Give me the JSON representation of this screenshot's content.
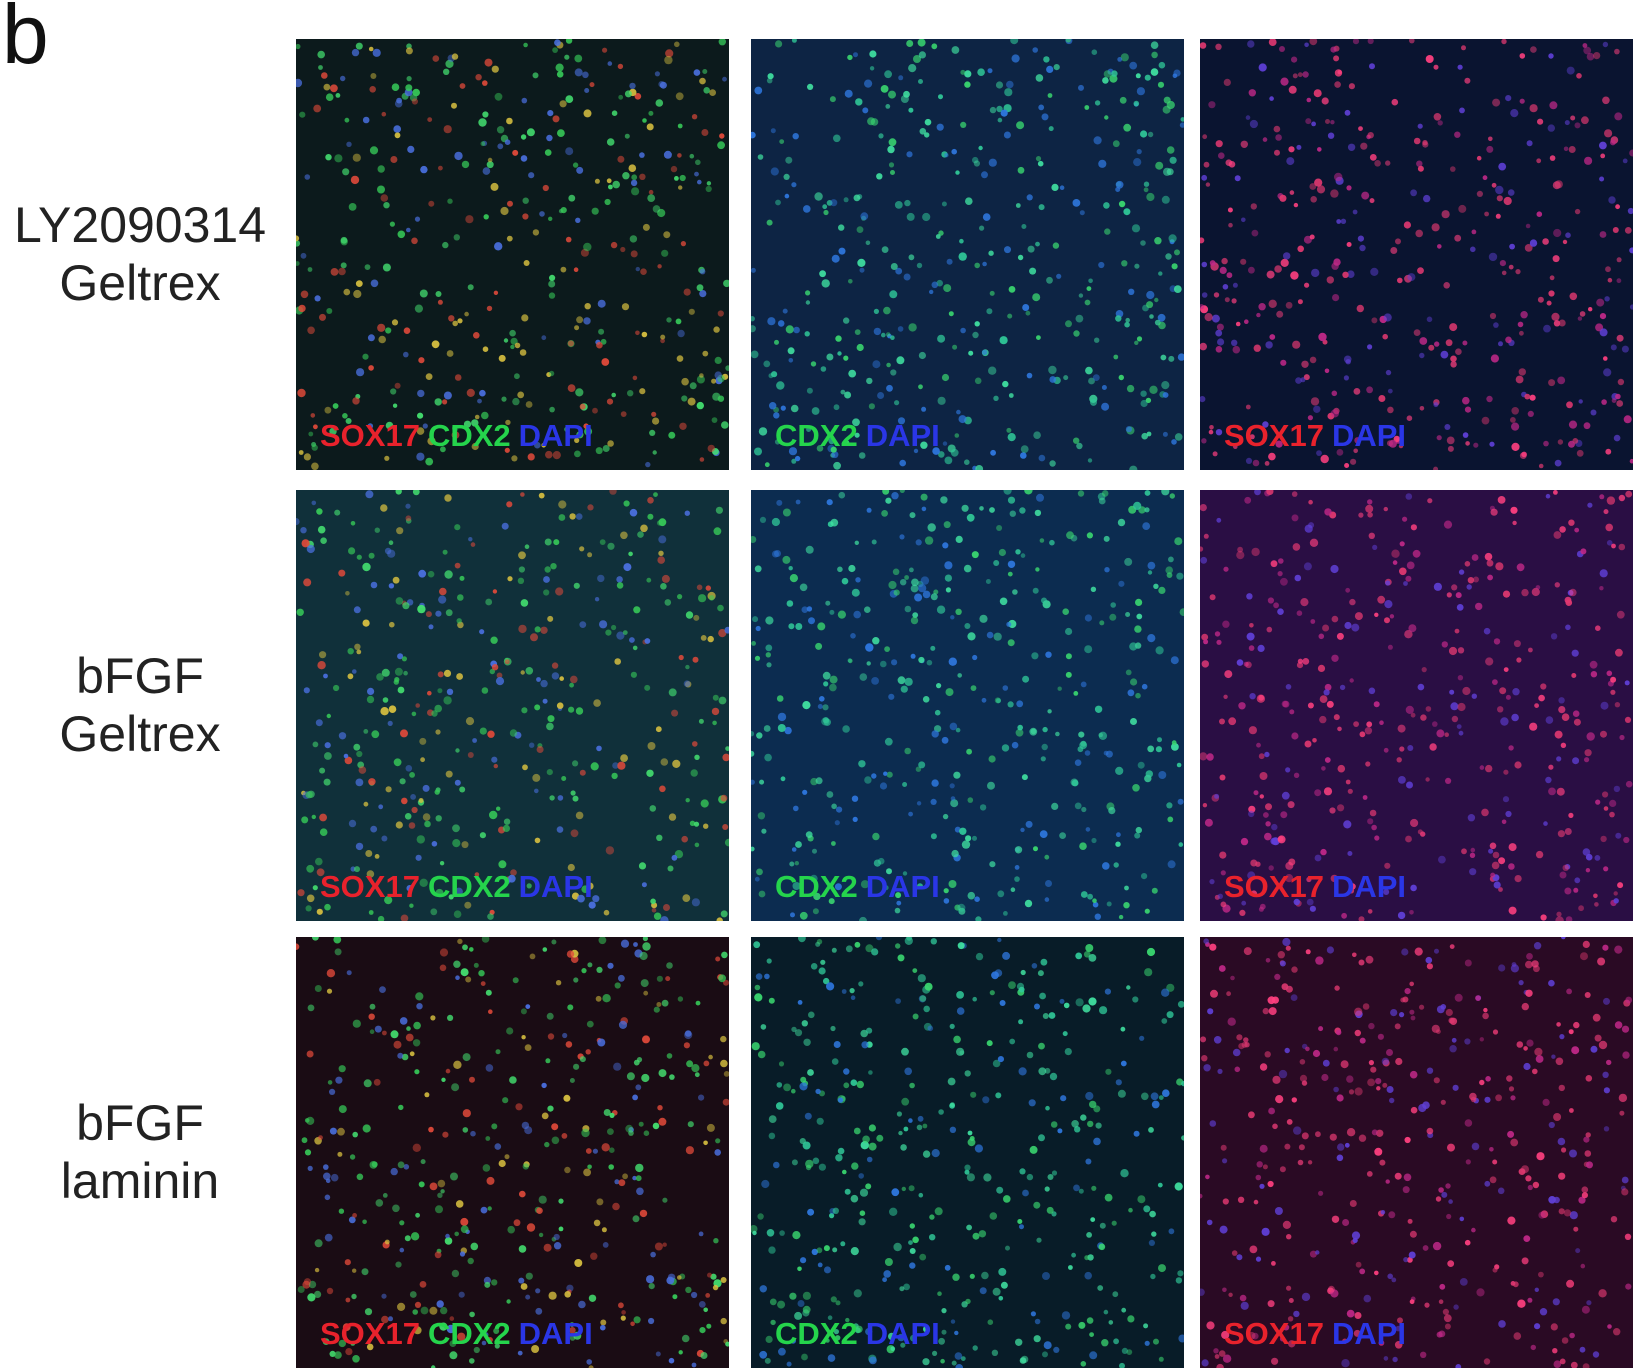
{
  "panel_label": "b",
  "rows": [
    {
      "label": [
        "LY2090314",
        "Geltrex"
      ],
      "panels": [
        {
          "stains": [
            {
              "text": "SOX17",
              "color": "#e8222c"
            },
            {
              "text": "CDX2",
              "color": "#25d44c"
            },
            {
              "text": "DAPI",
              "color": "#2a36e6"
            }
          ]
        },
        {
          "stains": [
            {
              "text": "CDX2",
              "color": "#25d44c"
            },
            {
              "text": "DAPI",
              "color": "#2a36e6"
            }
          ]
        },
        {
          "stains": [
            {
              "text": "SOX17",
              "color": "#e8222c"
            },
            {
              "text": "DAPI",
              "color": "#2a36e6"
            }
          ]
        }
      ]
    },
    {
      "label": [
        "bFGF",
        "Geltrex"
      ],
      "panels": [
        {
          "stains": [
            {
              "text": "SOX17",
              "color": "#e8222c"
            },
            {
              "text": "CDX2",
              "color": "#25d44c"
            },
            {
              "text": "DAPI",
              "color": "#2a36e6"
            }
          ]
        },
        {
          "stains": [
            {
              "text": "CDX2",
              "color": "#25d44c"
            },
            {
              "text": "DAPI",
              "color": "#2a36e6"
            }
          ]
        },
        {
          "stains": [
            {
              "text": "SOX17",
              "color": "#e8222c"
            },
            {
              "text": "DAPI",
              "color": "#2a36e6"
            }
          ]
        }
      ]
    },
    {
      "label": [
        "bFGF",
        "laminin"
      ],
      "panels": [
        {
          "stains": [
            {
              "text": "SOX17",
              "color": "#e8222c"
            },
            {
              "text": "CDX2",
              "color": "#25d44c"
            },
            {
              "text": "DAPI",
              "color": "#2a36e6"
            }
          ]
        },
        {
          "stains": [
            {
              "text": "CDX2",
              "color": "#25d44c"
            },
            {
              "text": "DAPI",
              "color": "#2a36e6"
            }
          ]
        },
        {
          "stains": [
            {
              "text": "SOX17",
              "color": "#e8222c"
            },
            {
              "text": "DAPI",
              "color": "#2a36e6"
            }
          ]
        }
      ]
    }
  ]
}
